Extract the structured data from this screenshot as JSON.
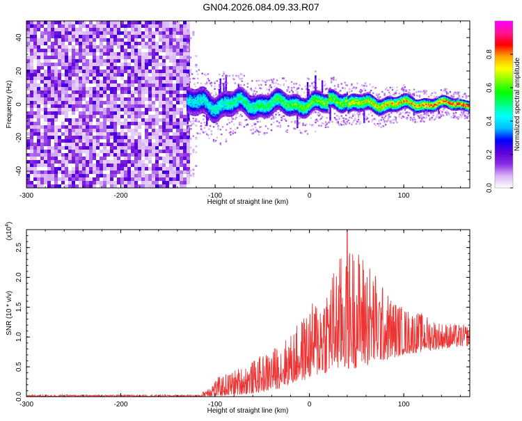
{
  "page": {
    "title": "GN04.2026.084.09.33.R07"
  },
  "chart_data": [
    {
      "type": "heatmap",
      "xlabel": "Height of straight line (km)",
      "ylabel": "Frequency (Hz)",
      "xlim": [
        -300,
        170
      ],
      "ylim": [
        -50,
        50
      ],
      "xticks": [
        -300,
        -200,
        -100,
        0,
        100
      ],
      "yticks": [
        -40,
        -20,
        0,
        20,
        40
      ],
      "colorbar": {
        "label": "Normalized spectral amplitude",
        "range": [
          0,
          1
        ],
        "ticks": [
          "0.0",
          "0.2",
          "0.4",
          "0.6",
          "0.8"
        ],
        "colormap": [
          "#ffffff",
          "#d8b4f8",
          "#8a2be2",
          "#5a00d8",
          "#0000ff",
          "#00bfff",
          "#00ffff",
          "#00ff80",
          "#00ff00",
          "#80ff00",
          "#ffff00",
          "#ffa500",
          "#ff0000",
          "#ff1493",
          "#ff00ff"
        ]
      },
      "regions": [
        {
          "x": [
            -300,
            -130
          ],
          "description_value": "broadband noise, amplitude 0.05-0.25"
        },
        {
          "x": [
            -130,
            170
          ],
          "center_frequency": 0,
          "band_halfwidth": [
            8,
            3
          ],
          "peak_amplitude": [
            0.45,
            0.9
          ]
        }
      ]
    },
    {
      "type": "line",
      "xlabel": "Height of straight line (km)",
      "ylabel": "SNR (10 * v/v)",
      "scale_label": "(x10",
      "scale_exp": "4",
      "xlim": [
        -300,
        170
      ],
      "ylim": [
        0,
        2.8
      ],
      "xticks": [
        -300,
        -200,
        -100,
        0,
        100
      ],
      "yticks": [
        "0.0",
        "0.5",
        "1.0",
        "1.5",
        "2.0",
        "2.5"
      ],
      "series": [
        {
          "color": "#ee3333",
          "envelope": {
            "x": [
              -300,
              -115,
              -110,
              -100,
              -80,
              -60,
              -40,
              -20,
              0,
              20,
              40,
              60,
              80,
              100,
              120,
              140,
              170
            ],
            "upper": [
              0.03,
              0.03,
              0.15,
              0.3,
              0.45,
              0.6,
              0.8,
              1.05,
              1.5,
              2.0,
              2.6,
              2.4,
              1.8,
              1.5,
              1.4,
              1.25,
              1.2
            ],
            "lower": [
              0.0,
              0.0,
              0.0,
              0.0,
              0.02,
              0.05,
              0.1,
              0.2,
              0.3,
              0.4,
              0.45,
              0.5,
              0.6,
              0.7,
              0.75,
              0.8,
              0.85
            ]
          },
          "peak": {
            "x": 40,
            "y": 2.8
          }
        }
      ]
    }
  ]
}
